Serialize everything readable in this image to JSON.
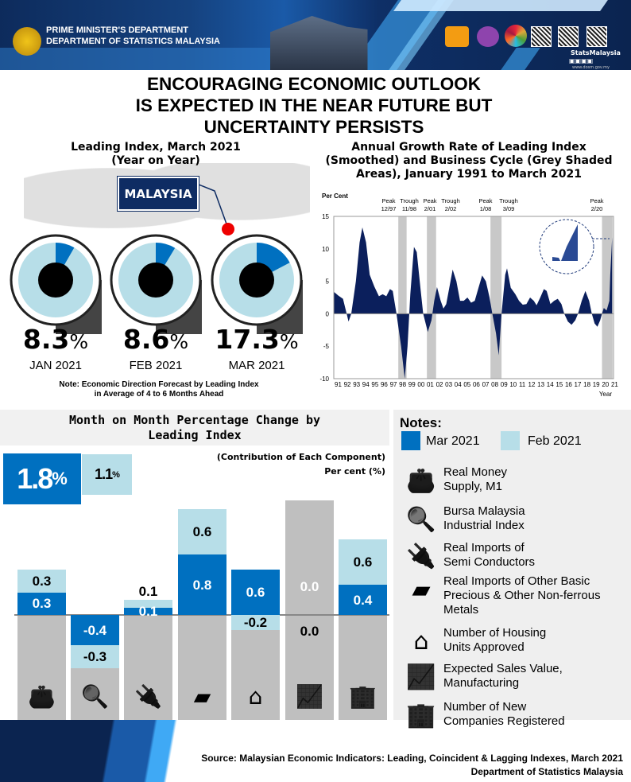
{
  "header": {
    "line1": "PRIME MINISTER'S DEPARTMENT",
    "line2": "DEPARTMENT OF STATISTICS MALAYSIA",
    "brand": "StatsMalaysia",
    "website": "www.dosm.gov.my"
  },
  "title": [
    "ENCOURAGING ECONOMIC OUTLOOK",
    "IS EXPECTED IN THE NEAR FUTURE BUT",
    "UNCERTAINTY PERSISTS"
  ],
  "leading_index": {
    "title": [
      "Leading Index, March 2021",
      "(Year on Year)"
    ],
    "country": "MALAYSIA",
    "items": [
      {
        "value": "8.3",
        "unit": "%",
        "month": "JAN 2021",
        "fraction": 0.083
      },
      {
        "value": "8.6",
        "unit": "%",
        "month": "FEB 2021",
        "fraction": 0.086
      },
      {
        "value": "17.3",
        "unit": "%",
        "month": "MAR 2021",
        "fraction": 0.173
      }
    ],
    "note": [
      "Note: Economic Direction Forecast by Leading Index",
      "in Average of 4 to 6 Months Ahead"
    ]
  },
  "colors": {
    "navy": "#0e2c63",
    "mar": "#0070c0",
    "feb": "#b7dee8",
    "grey": "#bfbfbf",
    "area": "#0b1f5c"
  },
  "chart_data": [
    {
      "type": "area",
      "title": [
        "Annual Growth Rate of Leading Index",
        "(Smoothed) and Business Cycle (Grey Shaded",
        "Areas), January 1991 to March 2021"
      ],
      "ylabel": "Per Cent",
      "xlabel": "Year",
      "ylim": [
        -10,
        15
      ],
      "yticks": [
        15,
        10,
        5,
        0,
        -5,
        -10
      ],
      "xticks": [
        "91",
        "92",
        "93",
        "94",
        "95",
        "96",
        "97",
        "98",
        "99",
        "00",
        "01",
        "02",
        "03",
        "04",
        "05",
        "06",
        "07",
        "08",
        "09",
        "10",
        "11",
        "12",
        "13",
        "14",
        "15",
        "16",
        "17",
        "18",
        "19",
        "20",
        "21"
      ],
      "cycles": [
        {
          "label": [
            "Peak",
            "12/97"
          ]
        },
        {
          "label": [
            "Trough",
            "11/98"
          ]
        },
        {
          "label": [
            "Peak",
            "2/01"
          ]
        },
        {
          "label": [
            "Trough",
            "2/02"
          ]
        },
        {
          "label": [
            "Peak",
            "1/08"
          ]
        },
        {
          "label": [
            "Trough",
            "3/09"
          ]
        },
        {
          "label": [
            "Peak",
            "2/20"
          ]
        }
      ],
      "shaded": [
        [
          1998.0,
          1998.9
        ],
        [
          2001.1,
          2002.1
        ],
        [
          2008.0,
          2009.2
        ],
        [
          2020.1,
          2021.25
        ]
      ],
      "x": [
        1991.0,
        1991.5,
        1992.0,
        1992.4,
        1992.6,
        1992.9,
        1993.4,
        1993.8,
        1994.1,
        1994.5,
        1994.9,
        1995.4,
        1995.9,
        1996.3,
        1996.7,
        1997.1,
        1997.4,
        1997.8,
        1998.3,
        1998.7,
        1999.0,
        1999.3,
        1999.7,
        2000.0,
        2000.4,
        2000.7,
        2001.2,
        2001.6,
        2001.9,
        2002.2,
        2002.6,
        2002.9,
        2003.2,
        2003.6,
        2003.9,
        2004.3,
        2004.7,
        2005.1,
        2005.5,
        2005.9,
        2006.3,
        2006.7,
        2007.1,
        2007.5,
        2007.9,
        2008.2,
        2008.6,
        2008.9,
        2009.2,
        2009.6,
        2009.8,
        2010.2,
        2010.7,
        2011.1,
        2011.5,
        2011.9,
        2012.3,
        2012.7,
        2013.0,
        2013.4,
        2013.8,
        2014.1,
        2014.5,
        2014.9,
        2015.3,
        2015.7,
        2016.0,
        2016.4,
        2016.8,
        2017.2,
        2017.5,
        2017.9,
        2018.3,
        2018.7,
        2019.0,
        2019.3,
        2019.6,
        2019.9,
        2020.1,
        2020.3,
        2020.6,
        2020.9,
        2021.0,
        2021.2
      ],
      "y": [
        3.4,
        2.8,
        2.3,
        0,
        -1.2,
        0,
        5,
        11,
        13.3,
        11,
        6,
        4.2,
        2.7,
        3,
        2.7,
        3.8,
        3.5,
        0,
        -5,
        -10,
        -5,
        3,
        10.3,
        9.5,
        4,
        0,
        -2.8,
        -1,
        2,
        4.1,
        2,
        0.8,
        1.5,
        4.5,
        6.8,
        5,
        2,
        2,
        2.5,
        1.7,
        2,
        4,
        5.9,
        5,
        2.5,
        0,
        -3,
        -6.4,
        0,
        6,
        7,
        4,
        3,
        2,
        1.4,
        1.5,
        2.5,
        2,
        1.3,
        2.5,
        3.8,
        3.5,
        1.5,
        2,
        2.3,
        1.5,
        0,
        -1.2,
        -1.7,
        -1,
        0,
        2,
        3.5,
        2,
        0,
        -1.5,
        -2,
        -1,
        0,
        0.9,
        0.5,
        2,
        6,
        11.8
      ]
    },
    {
      "type": "bar",
      "title": [
        "Month on Month Percentage Change by",
        "Leading Index"
      ],
      "subtitle": [
        "(Contribution of Each Component)",
        "Per cent (%)"
      ],
      "total": {
        "mar": {
          "value": "1.8",
          "unit": "%"
        },
        "feb": {
          "value": "1.1",
          "unit": "%"
        }
      },
      "categories": [
        "Real Money Supply, M1",
        "Bursa Malaysia Industrial Index",
        "Real Imports of Semi Conductors",
        "Real Imports of Other Basic Precious & Other Non-ferrous Metals",
        "Number of Housing Units Approved",
        "Expected Sales Value, Manufacturing",
        "Number of New Companies Registered"
      ],
      "series": [
        {
          "name": "Mar 2021",
          "values": [
            0.3,
            -0.4,
            0.1,
            0.8,
            0.6,
            0.0,
            0.4
          ],
          "labels": [
            "0.3",
            "-0.4",
            "0.1",
            "0.8",
            "0.6",
            "0.0",
            "0.4"
          ]
        },
        {
          "name": "Feb 2021",
          "values": [
            0.3,
            -0.3,
            0.1,
            0.6,
            -0.2,
            0.0,
            0.6
          ],
          "labels": [
            "0.3",
            "-0.3",
            "0.1",
            "0.6",
            "-0.2",
            "0.0",
            "0.6"
          ]
        }
      ]
    }
  ],
  "notes": {
    "title": "Notes:",
    "legend": [
      "Mar 2021",
      "Feb 2021"
    ],
    "items": [
      {
        "icon": "wallet-icon",
        "glyph": "👛",
        "lines": [
          "Real Money",
          "Supply, M1"
        ]
      },
      {
        "icon": "magnifier-chart-icon",
        "glyph": "🔍",
        "lines": [
          "Bursa Malaysia",
          "Industrial Index"
        ]
      },
      {
        "icon": "plug-icon",
        "glyph": "🔌",
        "lines": [
          "Real Imports of",
          "Semi Conductors"
        ]
      },
      {
        "icon": "gold-bar-icon",
        "glyph": "▰",
        "lines": [
          "Real Imports of Other Basic",
          "Precious & Other Non-ferrous",
          "Metals"
        ]
      },
      {
        "icon": "house-icon",
        "glyph": "⌂",
        "lines": [
          "Number of Housing",
          "Units Approved"
        ]
      },
      {
        "icon": "presentation-icon",
        "glyph": "📈",
        "lines": [
          "Expected Sales Value,",
          "Manufacturing"
        ]
      },
      {
        "icon": "buildings-icon",
        "glyph": "🏢",
        "lines": [
          "Number of New",
          "Companies Registered"
        ]
      }
    ]
  },
  "source": [
    "Source: Malaysian Economic Indicators: Leading, Coincident & Lagging Indexes, March 2021",
    "Department of Statistics Malaysia"
  ]
}
